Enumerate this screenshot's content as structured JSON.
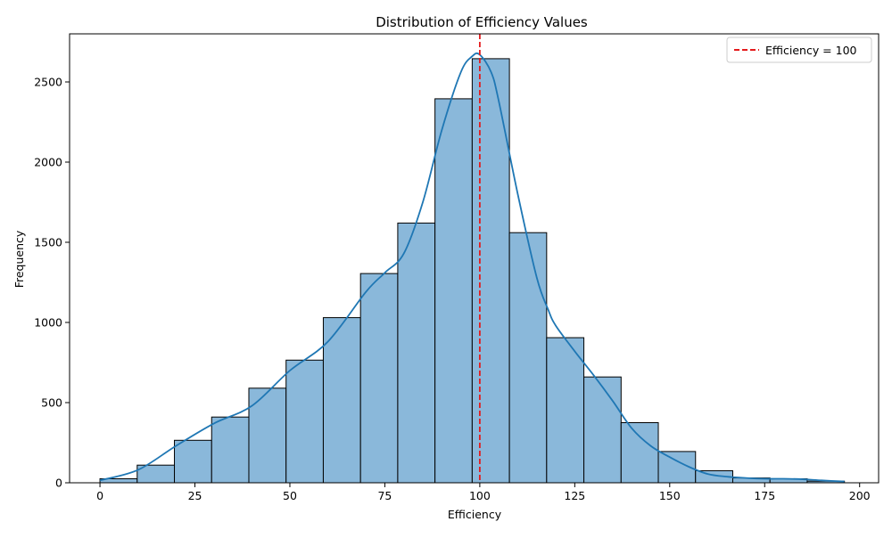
{
  "chart_data": {
    "type": "bar",
    "title": "Distribution of Efficiency Values",
    "xlabel": "Efficiency",
    "ylabel": "Frequency",
    "xlim": [
      -8,
      205
    ],
    "ylim": [
      0,
      2800
    ],
    "x_ticks": [
      0,
      25,
      50,
      75,
      100,
      125,
      150,
      175,
      200
    ],
    "y_ticks": [
      0,
      500,
      1000,
      1500,
      2000,
      2500
    ],
    "bins": {
      "edges": [
        0,
        9.8,
        19.6,
        29.4,
        39.2,
        49.0,
        58.8,
        68.6,
        78.4,
        88.2,
        98.0,
        107.8,
        117.6,
        127.4,
        137.2,
        147.0,
        156.8,
        166.6,
        176.4,
        186.2,
        196.0
      ],
      "counts": [
        25,
        110,
        265,
        410,
        590,
        765,
        1030,
        1305,
        1620,
        2395,
        2645,
        1560,
        905,
        660,
        375,
        195,
        75,
        30,
        25,
        10
      ]
    },
    "kde": {
      "x": [
        0,
        10,
        20,
        30,
        40,
        50,
        60,
        70,
        75,
        80,
        85,
        90,
        95,
        98,
        100,
        103,
        105,
        110,
        115,
        118,
        120,
        125,
        130,
        135,
        140,
        145,
        150,
        155,
        160,
        165,
        170,
        175,
        180,
        185,
        190,
        196
      ],
      "y": [
        15,
        80,
        230,
        370,
        480,
        700,
        880,
        1190,
        1310,
        1430,
        1750,
        2200,
        2560,
        2660,
        2670,
        2560,
        2380,
        1800,
        1280,
        1080,
        980,
        820,
        670,
        510,
        340,
        230,
        160,
        100,
        55,
        38,
        30,
        25,
        25,
        22,
        15,
        8
      ]
    },
    "reference_line": {
      "x": 100,
      "label": "Efficiency = 100",
      "color": "#e41a1c"
    },
    "colors": {
      "bar_fill": "#8ab8da",
      "bar_edge": "#000000",
      "kde_line": "#1f77b4"
    },
    "legend": {
      "position": "top-right"
    },
    "grid": false
  }
}
